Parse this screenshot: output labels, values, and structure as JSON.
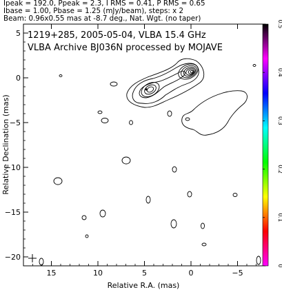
{
  "header": {
    "line1": "Ipeak = 192.0, Ppeak = 2.3, I RMS = 0.41, P RMS = 0.65",
    "line2": "Ibase = 1.00, Pbase = 1.25 (mJy/beam), steps: x 2",
    "line3": "Beam: 0.96x0.55 mas at -8.7 deg., Nat. Wgt. (no taper)"
  },
  "chart_data": {
    "type": "heatmap",
    "title": "1219+285, 2005-05-04, VLBA 15.4 GHz",
    "subtitle": "VLBA Archive BJ036N processed by MOJAVE",
    "xlabel": "Relative R.A. (mas)",
    "ylabel": "Relative Declination (mas)",
    "xlim": [
      18,
      -8
    ],
    "ylim": [
      -21,
      6
    ],
    "x_ticks": [
      15,
      10,
      5,
      0,
      -5
    ],
    "y_ticks": [
      5,
      0,
      -5,
      -10,
      -15,
      -20
    ],
    "colorbar": {
      "range": [
        0,
        0.5
      ],
      "ticks": [
        0,
        0.1,
        0.2,
        0.3,
        0.4,
        0.5
      ],
      "colors": [
        "#ff00ff",
        "#ff0000",
        "#ffff00",
        "#00ff00",
        "#00ffff",
        "#0000ff",
        "#ff00ff",
        "#000000"
      ]
    },
    "peak_component": {
      "x": 0.8,
      "y": 0.5
    },
    "knot_component": {
      "x": 4.8,
      "y": -1.3
    },
    "beam": {
      "major_mas": 0.96,
      "minor_mas": 0.55,
      "pa_deg": -8.7
    }
  }
}
